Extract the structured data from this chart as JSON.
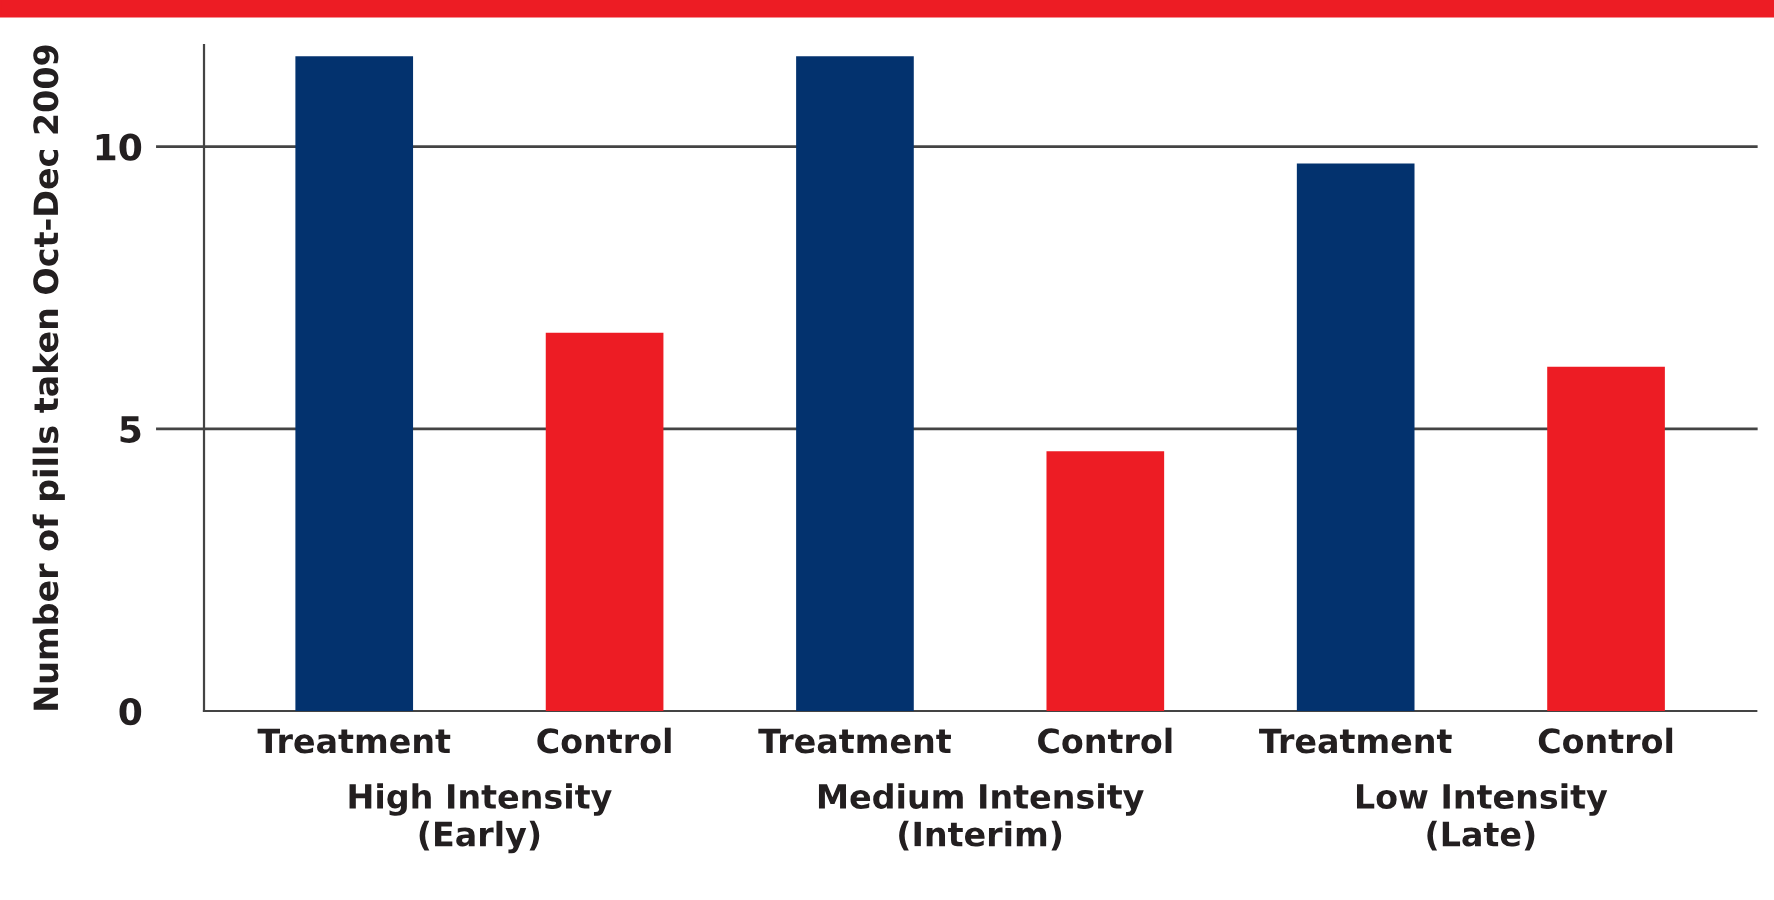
{
  "chart_data": {
    "type": "bar",
    "ylabel": "Number of pills taken Oct-Dec 2009",
    "categories": [
      "Treatment",
      "Control",
      "Treatment",
      "Control",
      "Treatment",
      "Control"
    ],
    "values": [
      11.6,
      6.7,
      11.6,
      4.6,
      9.7,
      6.1
    ],
    "colors": [
      "#03326e",
      "#ed1c24",
      "#03326e",
      "#ed1c24",
      "#03326e",
      "#ed1c24"
    ],
    "annotations": [
      "High Intensity\n(Early)",
      "Medium Intensity\n(Interim)",
      "Low Intensity\n(Late)"
    ],
    "ylim": [
      0,
      11.8
    ],
    "yticks": [
      0,
      5,
      10
    ],
    "grid": "y",
    "legend": false
  }
}
